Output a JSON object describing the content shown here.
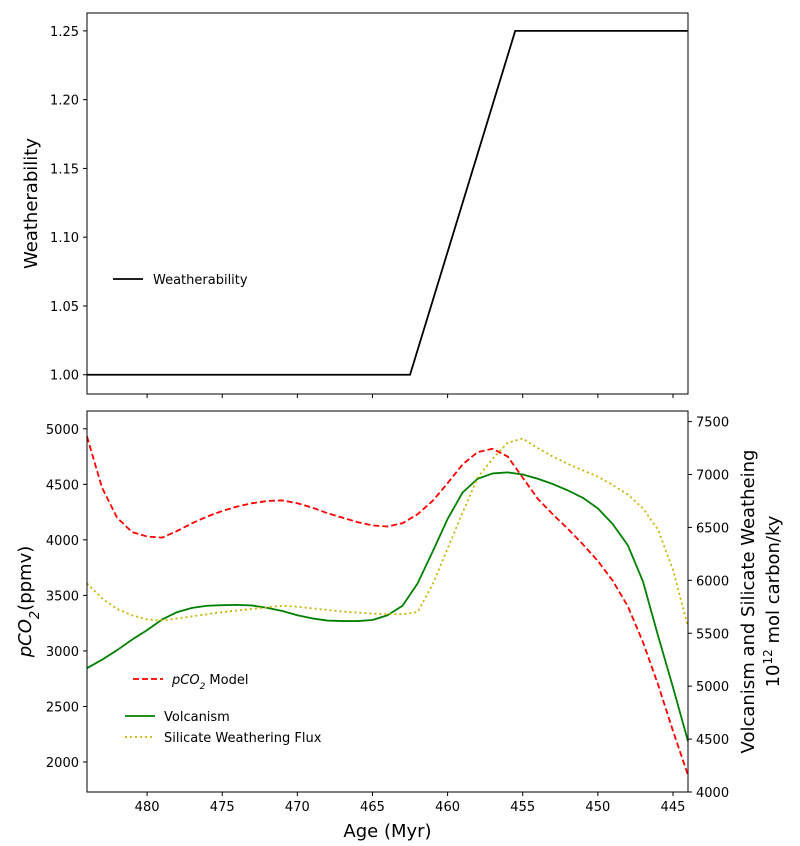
{
  "chart_data": [
    {
      "type": "line",
      "xlabel": "",
      "ylabel": "Weatherability",
      "x_reversed": true,
      "xlim": [
        484,
        444
      ],
      "ylim": [
        0.986,
        1.263
      ],
      "xticks": [
        480,
        475,
        470,
        465,
        460,
        455,
        450,
        445
      ],
      "yticks": [
        "1.00",
        "1.05",
        "1.10",
        "1.15",
        "1.20",
        "1.25"
      ],
      "legend_position": "center-left",
      "series": [
        {
          "name": "Weatherability",
          "color": "#000000",
          "style": "solid",
          "x": [
            484,
            462.5,
            455.5,
            444
          ],
          "y": [
            1.0,
            1.0,
            1.25,
            1.25
          ]
        }
      ]
    },
    {
      "type": "line",
      "xlabel": "Age (Myr)",
      "ylabel": "pCO2(ppmv)",
      "ylabel_right_line1": "Volcanism and Silicate Weatheing",
      "ylabel_right_line2": "10^12 mol carbon/ky",
      "x_reversed": true,
      "xlim": [
        484,
        444
      ],
      "ylim_left": [
        1730,
        5160
      ],
      "ylim_right": [
        4000,
        7600
      ],
      "xticks": [
        480,
        475,
        470,
        465,
        460,
        455,
        450,
        445
      ],
      "yticks_left": [
        2000,
        2500,
        3000,
        3500,
        4000,
        4500,
        5000
      ],
      "yticks_right": [
        4000,
        4500,
        5000,
        5500,
        6000,
        6500,
        7000,
        7500
      ],
      "legend_position": "lower-left",
      "series": [
        {
          "name": "pCO2 Model",
          "axis": "left",
          "color": "#ff0000",
          "style": "dashed",
          "x": [
            484,
            483,
            482,
            481,
            480,
            479,
            478,
            477,
            476,
            475,
            474,
            473,
            472,
            471,
            470,
            469,
            468,
            467,
            466,
            465,
            464,
            463,
            462,
            461,
            460,
            459,
            458,
            457,
            456,
            455,
            454,
            453,
            452,
            451,
            450,
            449,
            448,
            447,
            446,
            445,
            444
          ],
          "y": [
            4930,
            4470,
            4200,
            4070,
            4030,
            4020,
            4080,
            4150,
            4210,
            4260,
            4300,
            4330,
            4350,
            4355,
            4330,
            4290,
            4240,
            4200,
            4160,
            4130,
            4120,
            4150,
            4230,
            4350,
            4510,
            4680,
            4790,
            4820,
            4750,
            4560,
            4370,
            4230,
            4100,
            3960,
            3810,
            3630,
            3400,
            3080,
            2700,
            2280,
            1880
          ]
        },
        {
          "name": "Volcanism",
          "axis": "right",
          "color": "#008000",
          "style": "solid",
          "x": [
            484,
            483,
            482,
            481,
            480,
            479,
            478,
            477,
            476,
            475,
            474,
            473,
            472,
            471,
            470,
            469,
            468,
            467,
            466,
            465,
            464,
            463,
            462,
            461,
            460,
            459,
            458,
            457,
            456,
            455,
            454,
            453,
            452,
            451,
            450,
            449,
            448,
            447,
            446,
            445,
            444
          ],
          "y": [
            5170,
            5250,
            5340,
            5440,
            5530,
            5630,
            5700,
            5740,
            5760,
            5765,
            5768,
            5762,
            5740,
            5710,
            5670,
            5640,
            5620,
            5615,
            5615,
            5625,
            5670,
            5760,
            5970,
            6270,
            6580,
            6830,
            6960,
            7010,
            7020,
            7000,
            6960,
            6910,
            6850,
            6780,
            6680,
            6530,
            6330,
            5990,
            5480,
            4990,
            4480
          ]
        },
        {
          "name": "Silicate Weathering Flux",
          "axis": "right",
          "color": "#c8b400",
          "style": "dotted",
          "x": [
            484,
            483,
            482,
            481,
            480,
            479,
            478,
            477,
            476,
            475,
            474,
            473,
            472,
            471,
            470,
            469,
            468,
            467,
            466,
            465,
            464,
            463,
            462,
            461,
            460,
            459,
            458,
            457,
            456,
            455,
            454,
            453,
            452,
            451,
            450,
            449,
            448,
            447,
            446,
            445,
            444
          ],
          "y": [
            5970,
            5830,
            5730,
            5670,
            5630,
            5620,
            5640,
            5660,
            5680,
            5700,
            5715,
            5730,
            5745,
            5760,
            5750,
            5735,
            5720,
            5705,
            5695,
            5685,
            5680,
            5680,
            5700,
            5960,
            6300,
            6640,
            6970,
            7150,
            7300,
            7340,
            7250,
            7170,
            7100,
            7040,
            6980,
            6900,
            6810,
            6680,
            6480,
            6100,
            5560
          ]
        }
      ]
    }
  ]
}
